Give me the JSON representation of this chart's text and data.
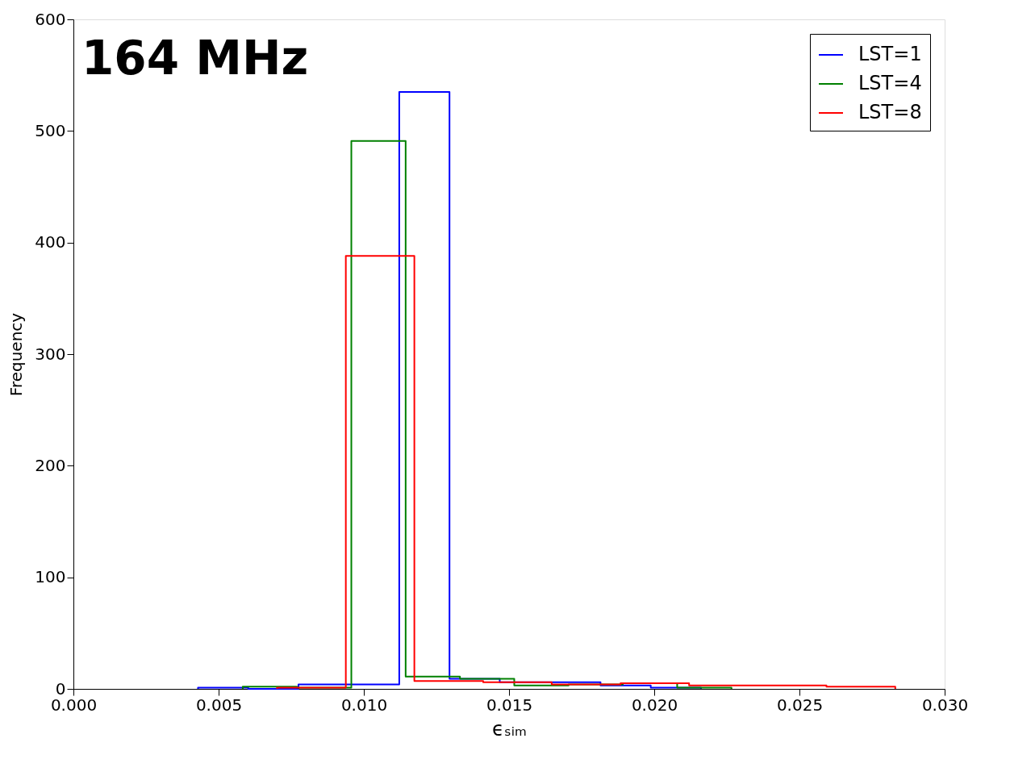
{
  "chart_data": {
    "type": "step",
    "title": "164 MHz",
    "xlabel": "ϵₛᵢₘ",
    "ylabel": "Frequency",
    "series": [
      {
        "name": "LST=1",
        "color": "#0000ff",
        "x": [
          0.00429,
          0.00429,
          0.00602,
          0.00775,
          0.00948,
          0.01122,
          0.01295,
          0.01468,
          0.01641,
          0.01815,
          0.01988,
          0.02161
        ],
        "values": [
          0,
          1,
          0,
          4,
          4,
          535,
          9,
          6,
          6,
          3,
          1,
          0
        ]
      },
      {
        "name": "LST=4",
        "color": "#008000",
        "x": [
          0.00583,
          0.00583,
          0.0077,
          0.00957,
          0.01144,
          0.01331,
          0.01518,
          0.01705,
          0.01892,
          0.02079,
          0.02266
        ],
        "values": [
          0,
          2,
          1,
          491,
          11,
          9,
          3,
          4,
          5,
          1,
          0
        ]
      },
      {
        "name": "LST=8",
        "color": "#ff0000",
        "x": [
          0.00701,
          0.00701,
          0.00938,
          0.01174,
          0.01411,
          0.01647,
          0.01884,
          0.0212,
          0.02357,
          0.02593,
          0.0283
        ],
        "values": [
          0,
          1,
          388,
          7,
          6,
          4,
          5,
          3,
          3,
          2,
          0
        ]
      }
    ],
    "xlim": [
      0,
      0.03
    ],
    "xticks": [
      {
        "value": 0,
        "label": "0.000"
      },
      {
        "value": 0.005,
        "label": "0.005"
      },
      {
        "value": 0.01,
        "label": "0.010"
      },
      {
        "value": 0.015,
        "label": "0.015"
      },
      {
        "value": 0.02,
        "label": "0.020"
      },
      {
        "value": 0.025,
        "label": "0.025"
      },
      {
        "value": 0.03,
        "label": "0.030"
      }
    ],
    "ylim": [
      0,
      600
    ],
    "yticks": [
      0,
      100,
      200,
      300,
      400,
      500,
      600
    ],
    "grid": false,
    "legend": "top right"
  }
}
